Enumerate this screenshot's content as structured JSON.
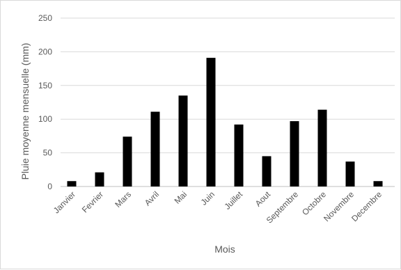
{
  "chart_data": {
    "type": "bar",
    "title": "",
    "xlabel": "Mois",
    "ylabel": "Pluie moyenne mensuelle (mm)",
    "categories": [
      "Janvier",
      "Fevrier",
      "Mars",
      "Avril",
      "Mai",
      "Juin",
      "Juillet",
      "Aout",
      "Septembre",
      "Octobre",
      "Novembre",
      "Decembre"
    ],
    "values": [
      8,
      21,
      74,
      111,
      135,
      191,
      92,
      45,
      97,
      114,
      37,
      8
    ],
    "ylim": [
      0,
      250
    ],
    "yticks": [
      "0",
      "50",
      "100",
      "150",
      "200",
      "250"
    ],
    "grid": true,
    "legend": "none",
    "colors": {
      "bar": "#000000",
      "grid": "#d9d9d9",
      "text": "#595959"
    }
  }
}
